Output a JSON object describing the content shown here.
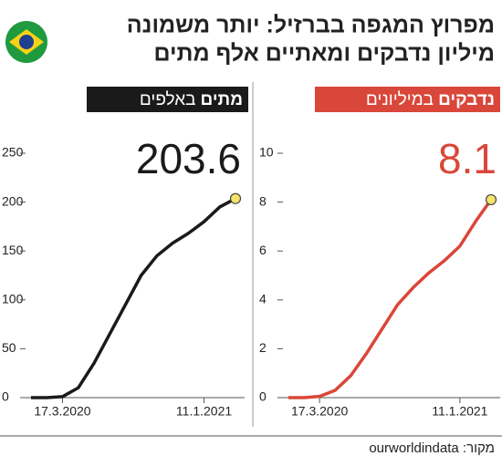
{
  "title_lines": [
    "מפרוץ המגפה בברזיל: יותר משמונה",
    "מיליון נדבקים ומאתיים אלף מתים"
  ],
  "source": "מקור: ourworldindata",
  "chart_data": [
    {
      "type": "line",
      "label_bold": "מתים",
      "label": "באלפים",
      "color": "#1a1a1a",
      "categories": [
        null,
        null,
        "17.3.2020",
        null,
        null,
        null,
        null,
        null,
        null,
        null,
        null,
        "11.1.2021",
        null,
        null
      ],
      "series": [
        {
          "color": "#1a1a1a",
          "values": [
            0,
            0,
            1,
            10,
            35,
            65,
            95,
            125,
            145,
            158,
            168,
            180,
            195,
            203.6
          ]
        }
      ],
      "ylim": [
        0,
        250
      ],
      "yticks": [
        0,
        50,
        100,
        150,
        200,
        250
      ]
    },
    {
      "type": "line",
      "label_bold": "נדבקים",
      "label": "במיליונים",
      "color": "#d9473a",
      "categories": [
        null,
        null,
        "17.3.2020",
        null,
        null,
        null,
        null,
        null,
        null,
        null,
        null,
        "11.1.2021",
        null,
        null
      ],
      "series": [
        {
          "color": "#d9473a",
          "values": [
            0,
            0,
            0.05,
            0.3,
            0.9,
            1.8,
            2.8,
            3.8,
            4.5,
            5.1,
            5.6,
            6.2,
            7.2,
            8.1
          ]
        }
      ],
      "ylim": [
        0,
        10
      ],
      "yticks": [
        0,
        2,
        4,
        6,
        8,
        10
      ]
    }
  ]
}
